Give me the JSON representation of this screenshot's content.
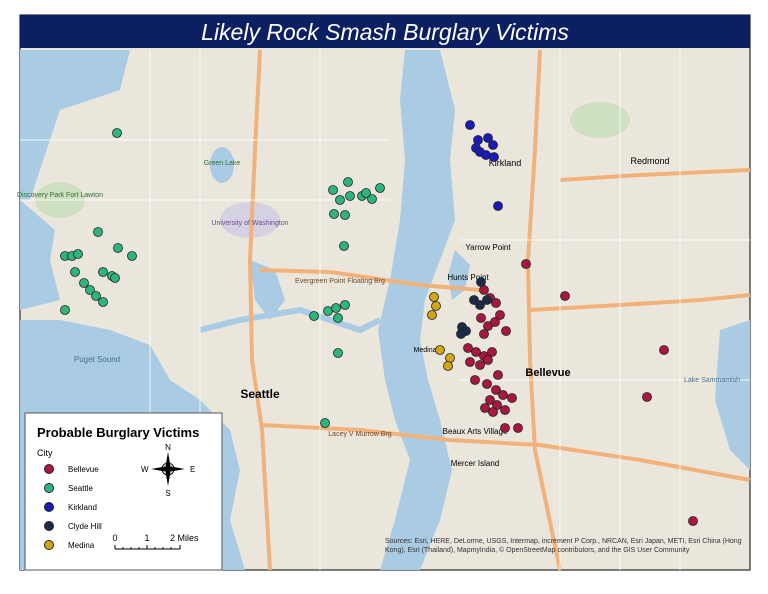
{
  "header": {
    "title": "Likely Rock Smash Burglary Victims"
  },
  "legend": {
    "title": "Probable Burglary Victims",
    "field": "City",
    "items": [
      {
        "label": "Bellevue",
        "color": "#a8173f"
      },
      {
        "label": "Seattle",
        "color": "#2db57c"
      },
      {
        "label": "Kirkland",
        "color": "#1a1ab8"
      },
      {
        "label": "Clyde Hill",
        "color": "#1c2b4a"
      },
      {
        "label": "Medina",
        "color": "#d4a514"
      }
    ]
  },
  "compass": {
    "n": "N",
    "s": "S",
    "e": "E",
    "w": "W"
  },
  "scale": {
    "labels": [
      "0",
      "1",
      "2 Miles"
    ]
  },
  "places": [
    "Seattle",
    "Bellevue",
    "Kirkland",
    "Redmond",
    "Yarrow Point",
    "Hunts Point",
    "Medina",
    "Beaux Arts Village",
    "Mercer Island",
    "Puget Sound",
    "Lake Sammamish",
    "Green Lake",
    "University of Washington",
    "Discovery Park Fort Lawton",
    "Evergreen Point Floating Brg",
    "Lacey V Murrow Brg"
  ],
  "attribution": "Sources: Esri, HERE, DeLorme, USGS, Intermap, increment P Corp., NRCAN, Esri Japan, METI, Esri China (Hong Kong), Esri (Thailand), MapmyIndia, © OpenStreetMap contributors, and the GIS User Community"
}
